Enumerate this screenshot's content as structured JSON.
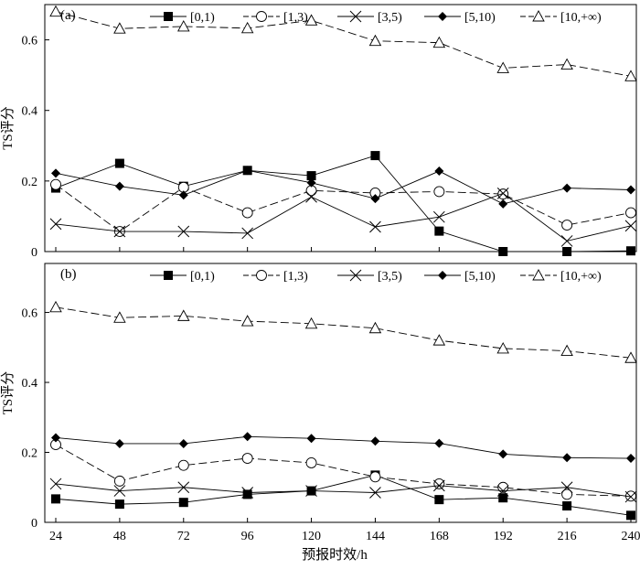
{
  "figure": {
    "xlabel": "预报时效/h"
  },
  "chart_data": [
    {
      "type": "line",
      "panel_label": "(a)",
      "ylabel": "TS评分",
      "x": [
        24,
        48,
        72,
        96,
        120,
        144,
        168,
        192,
        216,
        240
      ],
      "xlim": [
        24,
        240
      ],
      "ylim": [
        0,
        0.7
      ],
      "yticks": [
        0,
        0.2,
        0.4,
        0.6
      ],
      "ytick_labels": [
        "0",
        "0.2",
        "0.4",
        "0.6"
      ],
      "legend_position": "top",
      "series": [
        {
          "name": "[0,1)",
          "marker": "filled-square",
          "dashed": false,
          "values": [
            0.18,
            0.25,
            0.185,
            0.23,
            0.215,
            0.272,
            0.058,
            0.0,
            0.0,
            0.002
          ]
        },
        {
          "name": "[1,3)",
          "marker": "open-circle",
          "dashed": true,
          "values": [
            0.19,
            0.057,
            0.182,
            0.11,
            0.173,
            0.166,
            0.17,
            0.163,
            0.075,
            0.11
          ]
        },
        {
          "name": "[3,5)",
          "marker": "cross",
          "dashed": false,
          "values": [
            0.078,
            0.057,
            0.057,
            0.052,
            0.155,
            0.07,
            0.098,
            0.165,
            0.03,
            0.073
          ]
        },
        {
          "name": "[5,10)",
          "marker": "filled-diamond",
          "dashed": false,
          "values": [
            0.222,
            0.185,
            0.16,
            0.23,
            0.195,
            0.15,
            0.228,
            0.135,
            0.18,
            0.175
          ]
        },
        {
          "name": "[10,+∞)",
          "marker": "open-triangle",
          "dashed": true,
          "values": [
            0.68,
            0.632,
            0.638,
            0.633,
            0.655,
            0.597,
            0.592,
            0.52,
            0.53,
            0.497
          ]
        }
      ]
    },
    {
      "type": "line",
      "panel_label": "(b)",
      "ylabel": "TS评分",
      "x": [
        24,
        48,
        72,
        96,
        120,
        144,
        168,
        192,
        216,
        240
      ],
      "xlim": [
        24,
        240
      ],
      "ylim": [
        0,
        0.7
      ],
      "yticks": [
        0,
        0.2,
        0.4,
        0.6
      ],
      "ytick_labels": [
        "0",
        "0.2",
        "0.4",
        "0.6"
      ],
      "xticks": [
        24,
        48,
        72,
        96,
        120,
        144,
        168,
        192,
        216,
        240
      ],
      "xtick_labels": [
        "24",
        "48",
        "72",
        "96",
        "120",
        "144",
        "168",
        "192",
        "216",
        "240"
      ],
      "legend_position": "top",
      "series": [
        {
          "name": "[0,1)",
          "marker": "filled-square",
          "dashed": false,
          "values": [
            0.067,
            0.052,
            0.057,
            0.08,
            0.09,
            0.135,
            0.065,
            0.07,
            0.047,
            0.02
          ]
        },
        {
          "name": "[1,3)",
          "marker": "open-circle",
          "dashed": true,
          "values": [
            0.222,
            0.118,
            0.163,
            0.183,
            0.17,
            0.13,
            0.11,
            0.1,
            0.08,
            0.075
          ]
        },
        {
          "name": "[3,5)",
          "marker": "cross",
          "dashed": false,
          "values": [
            0.11,
            0.09,
            0.1,
            0.085,
            0.09,
            0.085,
            0.105,
            0.09,
            0.1,
            0.073
          ]
        },
        {
          "name": "[5,10)",
          "marker": "filled-diamond",
          "dashed": false,
          "values": [
            0.242,
            0.225,
            0.225,
            0.245,
            0.24,
            0.232,
            0.226,
            0.195,
            0.185,
            0.183
          ]
        },
        {
          "name": "[10,+∞)",
          "marker": "open-triangle",
          "dashed": true,
          "values": [
            0.615,
            0.585,
            0.59,
            0.575,
            0.568,
            0.555,
            0.52,
            0.497,
            0.49,
            0.47
          ]
        }
      ]
    }
  ]
}
